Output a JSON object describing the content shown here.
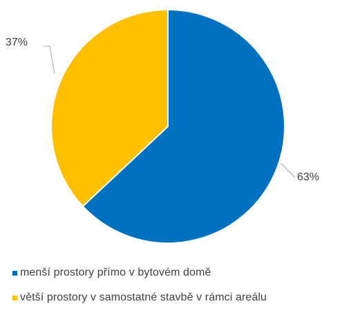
{
  "chart_data": {
    "type": "pie",
    "title": "",
    "series": [
      {
        "name": "menší prostory přímo v bytovém domě",
        "value": 63,
        "label": "63%",
        "color": "#0070C0"
      },
      {
        "name": "větší prostory v samostatné stavbě v rámci areálu",
        "value": 37,
        "label": "37%",
        "color": "#FFC000"
      }
    ],
    "start_angle_deg": 0,
    "direction": "clockwise",
    "legend_position": "bottom",
    "leader_line_color": "#A6A6A6",
    "slice_border_color": "#FFFFFF"
  }
}
